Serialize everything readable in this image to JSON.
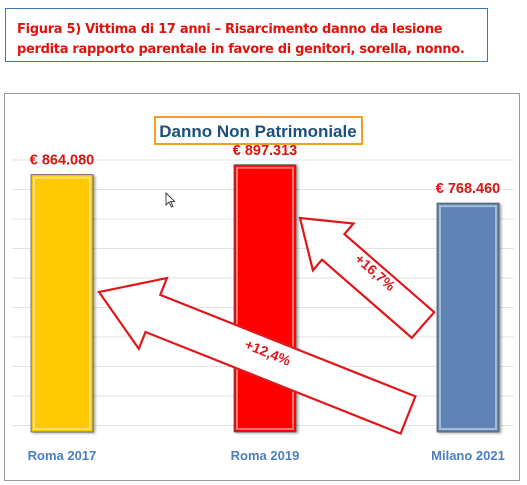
{
  "caption": "Figura 5) Vittima di 17 anni – Risarcimento danno da lesione perdita rapporto parentale in favore di genitori, sorella, nonno.",
  "colors": {
    "caption_text": "#e3120b",
    "caption_border": "#3a78b8",
    "title_border": "#f0a020",
    "title_text": "#1f4e79",
    "value_label": "#d9150f",
    "category_label": "#4a80c0",
    "arrow_outline": "#e0161b",
    "arrow_text": "#e0161b",
    "gridline": "#e3e3e3"
  },
  "icons": [
    "mouse-cursor-icon"
  ],
  "chart_data": {
    "type": "bar",
    "title": "Danno Non Patrimoniale",
    "categories": [
      "Roma 2017",
      "Roma 2019",
      "Milano 2021"
    ],
    "values": [
      864080,
      897313,
      768460
    ],
    "value_labels": [
      "€ 864.080",
      "€ 897.313",
      "€ 768.460"
    ],
    "bar_colors": [
      "#ffc800",
      "#ff0000",
      "#5d84b5"
    ],
    "ylim": [
      0,
      920000
    ],
    "grid": true,
    "legend": "none",
    "annotations": [
      {
        "text": "+16,7%",
        "from": "Milano 2021",
        "to": "Roma 2019"
      },
      {
        "text": "+12,4%",
        "from": "Milano 2021",
        "to": "Roma 2017"
      }
    ]
  }
}
